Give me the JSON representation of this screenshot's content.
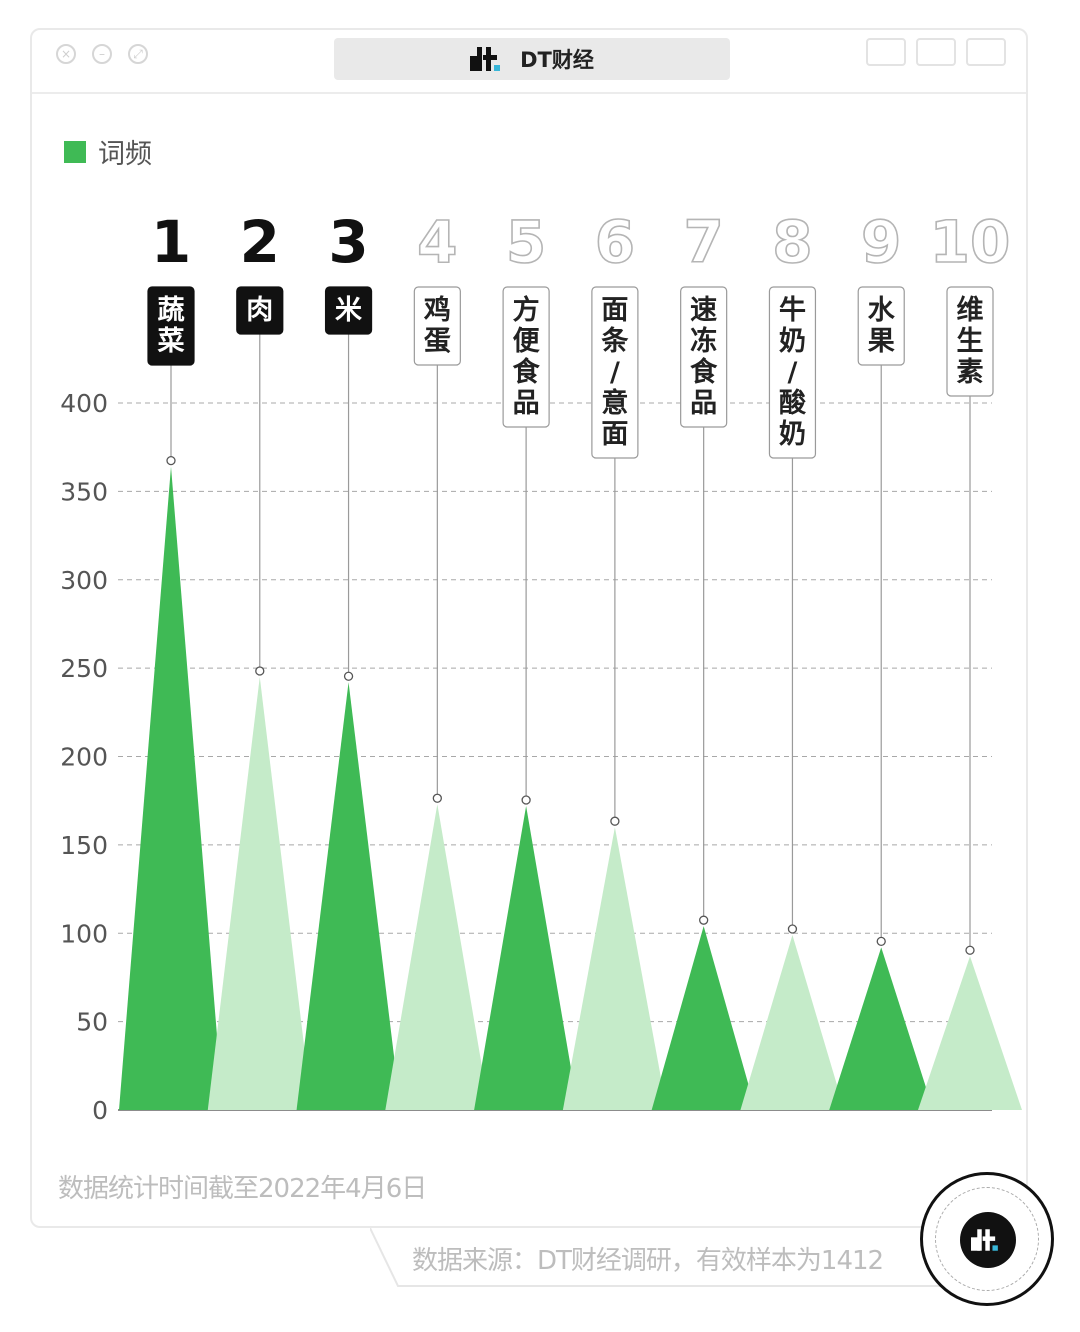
{
  "window": {
    "title": "DT财经",
    "accent_color": "#3fba55",
    "light_color": "#c5ebc9"
  },
  "legend": {
    "label": "词频"
  },
  "chart_data": {
    "type": "bar",
    "title": "",
    "xlabel": "",
    "ylabel": "",
    "ylim": [
      0,
      400
    ],
    "yticks": [
      0,
      50,
      100,
      150,
      200,
      250,
      300,
      350,
      400
    ],
    "grid": true,
    "legend_position": "top-left",
    "series": [
      {
        "name": "词频",
        "values": [
          364,
          245,
          242,
          173,
          172,
          160,
          104,
          99,
          92,
          87
        ]
      }
    ],
    "categories": [
      "蔬菜",
      "肉",
      "米",
      "鸡蛋",
      "方便食品",
      "面条/意面",
      "速冻食品",
      "牛奶/酸奶",
      "水果",
      "维生素"
    ],
    "ranks": [
      "1",
      "2",
      "3",
      "4",
      "5",
      "6",
      "7",
      "8",
      "9",
      "10"
    ]
  },
  "footnote": "数据统计时间截至2022年4月6日",
  "source": "数据来源：DT财经调研，有效样本为1412",
  "badge": {
    "icon": "dt-logo-icon"
  }
}
